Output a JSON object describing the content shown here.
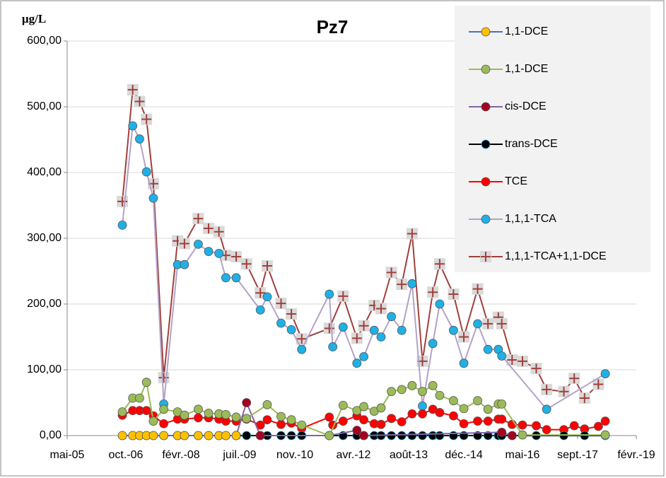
{
  "chart_data": {
    "type": "line",
    "title": "Pz7",
    "y_axis_label": "µg/L",
    "xlim": [
      "2005-05",
      "2019-02"
    ],
    "xticks": [
      {
        "value": "2005-05",
        "label": "mai-05"
      },
      {
        "value": "2006-10",
        "label": "oct.-06"
      },
      {
        "value": "2008-02",
        "label": "févr.-08"
      },
      {
        "value": "2009-07",
        "label": "juil.-09"
      },
      {
        "value": "2010-11",
        "label": "nov.-10"
      },
      {
        "value": "2012-04",
        "label": "avr.-12"
      },
      {
        "value": "2013-08",
        "label": "août-13"
      },
      {
        "value": "2014-12",
        "label": "déc.-14"
      },
      {
        "value": "2016-05",
        "label": "mai-16"
      },
      {
        "value": "2017-09",
        "label": "sept.-17"
      },
      {
        "value": "2019-02",
        "label": "févr.-19"
      }
    ],
    "ylim": [
      0,
      600
    ],
    "yticks": [
      {
        "value": 0,
        "label": "0,00"
      },
      {
        "value": 100,
        "label": "100,00"
      },
      {
        "value": 200,
        "label": "200,00"
      },
      {
        "value": 300,
        "label": "300,00"
      },
      {
        "value": 400,
        "label": "400,00"
      },
      {
        "value": 500,
        "label": "500,00"
      },
      {
        "value": 600,
        "label": "600,00"
      }
    ],
    "grid": true,
    "legend": "right",
    "series": [
      {
        "name": "1,1-DCE",
        "color": "#4472c4",
        "marker_color": "#ffc000",
        "marker": "circle",
        "x": [
          "2006-09",
          "2006-12",
          "2007-02",
          "2007-04",
          "2007-06",
          "2007-09",
          "2008-01",
          "2008-03",
          "2008-07",
          "2008-10",
          "2009-01",
          "2009-03",
          "2009-06"
        ],
        "values": [
          0,
          0,
          0,
          0,
          0,
          0,
          0,
          0,
          0,
          0,
          0,
          0,
          0
        ]
      },
      {
        "name": "1,1-DCE",
        "color": "#9bbb59",
        "marker_color": "#9bbb59",
        "marker": "circle",
        "x": [
          "2006-09",
          "2006-12",
          "2007-02",
          "2007-04",
          "2007-06",
          "2007-09",
          "2008-01",
          "2008-03",
          "2008-07",
          "2008-10",
          "2009-01",
          "2009-03",
          "2009-06",
          "2009-09",
          "2010-03",
          "2010-07",
          "2010-10",
          "2011-01",
          "2011-09",
          "2012-01",
          "2012-05",
          "2012-07",
          "2012-10",
          "2012-12",
          "2013-03",
          "2013-06",
          "2013-09",
          "2013-12",
          "2014-03",
          "2014-05",
          "2014-09",
          "2014-12",
          "2015-04",
          "2015-07",
          "2015-10",
          "2015-11",
          "2016-05",
          "2018-05"
        ],
        "values": [
          36,
          57,
          57,
          81,
          22,
          40,
          36,
          31,
          40,
          34,
          33,
          32,
          28,
          26,
          47,
          29,
          24,
          16,
          0,
          46,
          38,
          44,
          37,
          42,
          67,
          70,
          76,
          67,
          76,
          61,
          53,
          41,
          53,
          40,
          48,
          48,
          1,
          1
        ]
      },
      {
        "name": "cis-DCE",
        "color": "#8064a2",
        "marker_color": "#a50021",
        "marker": "circle",
        "x": [
          "2009-06",
          "2009-09",
          "2010-01",
          "2011-09",
          "2012-05",
          "2012-07",
          "2015-11",
          "2016-02"
        ],
        "values": [
          0,
          50,
          0,
          0,
          8,
          0,
          5,
          0
        ]
      },
      {
        "name": "trans-DCE",
        "color": "#000000",
        "marker_color": "#000000",
        "marker": "circle",
        "x": [
          "2006-09",
          "2006-12",
          "2007-02",
          "2007-04",
          "2007-06",
          "2007-09",
          "2008-01",
          "2008-03",
          "2008-07",
          "2008-10",
          "2009-01",
          "2009-03",
          "2009-06",
          "2009-09",
          "2010-01",
          "2010-03",
          "2010-07",
          "2010-10",
          "2011-01",
          "2011-09",
          "2012-01",
          "2012-05",
          "2012-07",
          "2012-10",
          "2012-12",
          "2013-03",
          "2013-06",
          "2013-09",
          "2013-12",
          "2014-03",
          "2014-05",
          "2014-09",
          "2014-12",
          "2015-04",
          "2015-07",
          "2015-10",
          "2015-11",
          "2016-02",
          "2016-09",
          "2017-05",
          "2017-11",
          "2018-05"
        ],
        "values": [
          0,
          0,
          0,
          0,
          0,
          0,
          0,
          0,
          0,
          0,
          0,
          0,
          0,
          0,
          0,
          0,
          0,
          0,
          0,
          0,
          0,
          0,
          0,
          0,
          0,
          0,
          0,
          0,
          0,
          0,
          0,
          0,
          0,
          0,
          0,
          0,
          0,
          0,
          0,
          0,
          0,
          0
        ]
      },
      {
        "name": "TCE",
        "color": "#ff0000",
        "marker_color": "#ff0000",
        "marker": "circle",
        "x": [
          "2006-09",
          "2006-12",
          "2007-02",
          "2007-04",
          "2007-06",
          "2007-09",
          "2008-01",
          "2008-03",
          "2008-07",
          "2008-10",
          "2009-01",
          "2009-03",
          "2009-06",
          "2009-09",
          "2010-01",
          "2010-03",
          "2010-07",
          "2010-10",
          "2011-01",
          "2011-09",
          "2011-10",
          "2012-01",
          "2012-05",
          "2012-07",
          "2012-10",
          "2012-12",
          "2013-03",
          "2013-06",
          "2013-09",
          "2013-12",
          "2014-03",
          "2014-05",
          "2014-09",
          "2014-12",
          "2015-04",
          "2015-07",
          "2015-10",
          "2015-11",
          "2016-02",
          "2016-05",
          "2016-09",
          "2016-12",
          "2017-05",
          "2017-08",
          "2017-11",
          "2018-03",
          "2018-05"
        ],
        "values": [
          31,
          38,
          38,
          38,
          30,
          18,
          25,
          25,
          27,
          27,
          25,
          22,
          22,
          25,
          16,
          24,
          17,
          19,
          11,
          28,
          16,
          22,
          30,
          24,
          18,
          17,
          26,
          21,
          33,
          33,
          40,
          35,
          30,
          18,
          22,
          22,
          25,
          25,
          17,
          16,
          15,
          9,
          9,
          15,
          10,
          14,
          22
        ]
      },
      {
        "name": "1,1,1-TCA",
        "color": "#b3a2c7",
        "marker_color": "#1fb0e6",
        "marker": "circle",
        "x": [
          "2006-09",
          "2006-12",
          "2007-02",
          "2007-04",
          "2007-06",
          "2007-09",
          "2008-01",
          "2008-03",
          "2008-07",
          "2008-10",
          "2009-01",
          "2009-03",
          "2009-06",
          "2010-01",
          "2010-03",
          "2010-07",
          "2010-10",
          "2011-01",
          "2011-09",
          "2011-10",
          "2012-01",
          "2012-05",
          "2012-07",
          "2012-10",
          "2012-12",
          "2013-03",
          "2013-06",
          "2013-09",
          "2013-12",
          "2014-03",
          "2014-05",
          "2014-09",
          "2014-12",
          "2015-04",
          "2015-07",
          "2015-10",
          "2015-11",
          "2016-12",
          "2018-05"
        ],
        "values": [
          320,
          471,
          451,
          401,
          361,
          48,
          260,
          260,
          291,
          280,
          277,
          240,
          240,
          191,
          211,
          171,
          161,
          131,
          215,
          135,
          165,
          110,
          120,
          160,
          150,
          181,
          160,
          231,
          45,
          140,
          200,
          160,
          110,
          170,
          131,
          131,
          121,
          40,
          94
        ]
      },
      {
        "name": "1,1,1-TCA+1,1-DCE",
        "color": "#a0403c",
        "marker_color": "#d9d9d9",
        "marker": "plus-square",
        "x": [
          "2006-09",
          "2006-12",
          "2007-02",
          "2007-04",
          "2007-06",
          "2007-09",
          "2008-01",
          "2008-03",
          "2008-07",
          "2008-10",
          "2009-01",
          "2009-03",
          "2009-06",
          "2009-09",
          "2010-01",
          "2010-03",
          "2010-07",
          "2010-10",
          "2011-01",
          "2011-09",
          "2012-01",
          "2012-05",
          "2012-07",
          "2012-10",
          "2012-12",
          "2013-03",
          "2013-06",
          "2013-09",
          "2013-12",
          "2014-03",
          "2014-05",
          "2014-09",
          "2014-12",
          "2015-04",
          "2015-07",
          "2015-10",
          "2015-11",
          "2016-02",
          "2016-05",
          "2016-09",
          "2016-12",
          "2017-05",
          "2017-08",
          "2017-11",
          "2018-03"
        ],
        "values": [
          356,
          526,
          508,
          481,
          383,
          88,
          296,
          292,
          330,
          315,
          310,
          274,
          272,
          261,
          217,
          258,
          201,
          185,
          147,
          163,
          212,
          148,
          167,
          198,
          193,
          248,
          230,
          307,
          113,
          218,
          261,
          215,
          150,
          223,
          170,
          180,
          170,
          115,
          113,
          102,
          70,
          67,
          87,
          57,
          78
        ]
      }
    ]
  }
}
